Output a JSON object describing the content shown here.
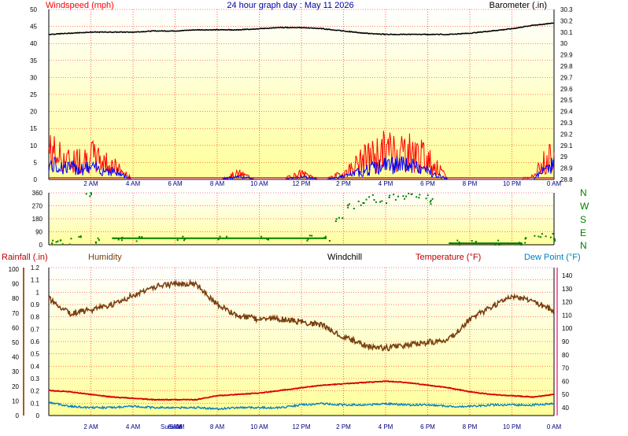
{
  "header": {
    "title": "24 hour graph day : May 11 2026",
    "windspeed_label": "Windspeed (mph)",
    "barometer_label": "Barometer (.in)"
  },
  "time_axis": [
    "2 AM",
    "4 AM",
    "6 AM",
    "8 AM",
    "10 AM",
    "12 PM",
    "2 PM",
    "4 PM",
    "6 PM",
    "8 PM",
    "10 PM",
    "0 AM"
  ],
  "sun_labels": {
    "sunrise": "Sunrise",
    "sunset": "6 AM"
  },
  "compass": [
    "N",
    "W",
    "S",
    "E",
    "N"
  ],
  "lower_labels": {
    "rainfall": "Rainfall (.in)",
    "humidity": "Humidity",
    "windchill": "Windchill",
    "temperature": "Temperature (°F)",
    "dewpoint": "Dew Point (°F)"
  },
  "colors": {
    "windspeed": "#ff0000",
    "wind_average": "#0000ff",
    "barometer": "#000000",
    "direction": "#008000",
    "humidity": "#7a4010",
    "temperature": "#e00000",
    "dewpoint": "#0080c0",
    "background_top": "#ffffff",
    "background_bottom": "#ffff99",
    "grid": "#ff0000"
  },
  "chart_data": [
    {
      "type": "line",
      "panel": "wind-barometer",
      "ylabel": "Windspeed (mph)",
      "ylim": [
        0,
        50
      ],
      "yticks": [
        0,
        5,
        10,
        15,
        20,
        25,
        30,
        35,
        40,
        45,
        50
      ],
      "y2label": "Barometer (.in)",
      "y2lim": [
        28.8,
        30.3
      ],
      "y2ticks": [
        "28.8",
        "28.9",
        "29",
        "29.1",
        "29.2",
        "29.3",
        "29.4",
        "29.5",
        "29.6",
        "29.7",
        "29.8",
        "29.9",
        "30",
        "30.1",
        "30.2",
        "30.3"
      ],
      "x_hours": [
        0,
        1,
        2,
        3,
        4,
        5,
        6,
        7,
        8,
        9,
        10,
        11,
        12,
        13,
        14,
        15,
        16,
        17,
        18,
        19,
        20,
        21,
        22,
        23,
        24
      ],
      "series": [
        {
          "key": "barometer",
          "values": [
            30.08,
            30.09,
            30.1,
            30.1,
            30.1,
            30.11,
            30.11,
            30.12,
            30.12,
            30.12,
            30.13,
            30.14,
            30.14,
            30.13,
            30.11,
            30.09,
            30.08,
            30.08,
            30.08,
            30.08,
            30.09,
            30.11,
            30.13,
            30.16,
            30.18
          ]
        },
        {
          "key": "gust",
          "values": [
            10,
            6,
            8,
            5,
            0,
            0,
            0,
            0,
            0,
            2,
            0,
            0,
            2,
            0,
            2,
            7,
            10,
            10,
            7,
            0,
            0,
            0,
            0,
            1,
            10
          ]
        },
        {
          "key": "average",
          "values": [
            5,
            4,
            4,
            3,
            0,
            0,
            0,
            0,
            0,
            1,
            0,
            0,
            1,
            0,
            1,
            3,
            5,
            5,
            3,
            0,
            0,
            0,
            0,
            0,
            6
          ]
        }
      ]
    },
    {
      "type": "scatter",
      "panel": "wind-direction",
      "ylim": [
        0,
        360
      ],
      "yticks": [
        0,
        90,
        180,
        270,
        360
      ],
      "x_hours": [
        0,
        0.5,
        1,
        1.5,
        2,
        3,
        4,
        6,
        8,
        10,
        12,
        13,
        13.5,
        14,
        14.5,
        15,
        15.5,
        16,
        16.5,
        17,
        17.5,
        18,
        19,
        20,
        21,
        22,
        22.5,
        23,
        23.5,
        24
      ],
      "values": [
        30,
        20,
        60,
        350,
        30,
        35,
        45,
        45,
        45,
        45,
        45,
        45,
        180,
        270,
        290,
        330,
        300,
        330,
        320,
        340,
        330,
        300,
        10,
        10,
        10,
        10,
        30,
        70,
        60,
        30
      ]
    },
    {
      "type": "line",
      "panel": "temperature-humidity",
      "ylabel": "Rainfall (.in)",
      "ylim": [
        0,
        1.2
      ],
      "yticks": [
        "0",
        "0.1",
        "0.2",
        "0.3",
        "0.4",
        "0.5",
        "0.6",
        "0.7",
        "0.8",
        "0.9",
        "1",
        "1.1",
        "1.2"
      ],
      "humidity_scale": [
        0,
        10,
        20,
        30,
        40,
        50,
        60,
        70,
        80,
        90,
        100
      ],
      "temperature_scale": [
        40,
        50,
        60,
        70,
        80,
        90,
        100,
        110,
        120,
        130,
        140
      ],
      "x_hours": [
        0,
        1,
        2,
        3,
        4,
        5,
        6,
        7,
        8,
        9,
        10,
        11,
        12,
        13,
        14,
        15,
        16,
        17,
        18,
        19,
        20,
        21,
        22,
        23,
        24
      ],
      "series": [
        {
          "key": "humidity",
          "values": [
            80,
            70,
            72,
            76,
            82,
            88,
            90,
            90,
            76,
            68,
            66,
            66,
            64,
            62,
            54,
            48,
            46,
            48,
            50,
            52,
            66,
            74,
            82,
            78,
            72
          ]
        },
        {
          "key": "temperature",
          "values": [
            53,
            52,
            50,
            48,
            47,
            46,
            46,
            46,
            49,
            50,
            51,
            53,
            55,
            57,
            58,
            59,
            60,
            59,
            57,
            55,
            52,
            50,
            49,
            48,
            50
          ]
        },
        {
          "key": "dewpoint",
          "values": [
            44,
            41,
            40,
            40,
            41,
            40,
            40,
            40,
            39,
            40,
            40,
            40,
            42,
            43,
            42,
            42,
            43,
            42,
            42,
            41,
            41,
            42,
            42,
            42,
            43
          ]
        },
        {
          "key": "windchill",
          "values": [
            53,
            52,
            50,
            48,
            47,
            46,
            46,
            46,
            49,
            50,
            51,
            53,
            55,
            57,
            58,
            59,
            60,
            59,
            57,
            55,
            52,
            50,
            49,
            48,
            50
          ]
        }
      ]
    }
  ]
}
